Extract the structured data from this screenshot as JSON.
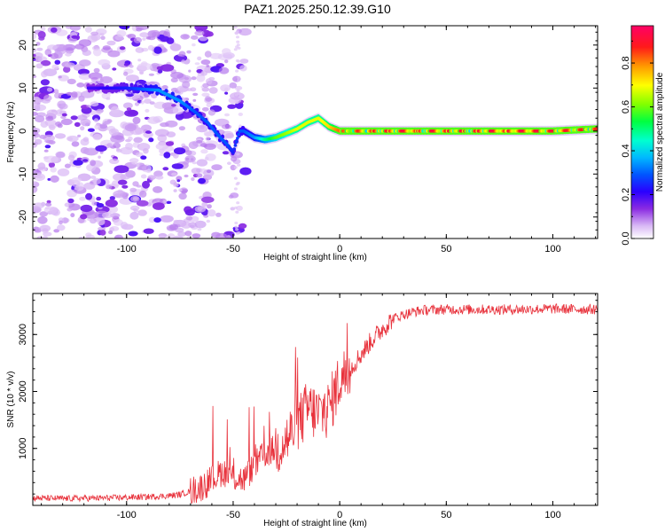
{
  "figure_title": "PAZ1.2025.250.12.39.G10",
  "chart_data": [
    {
      "type": "heatmap",
      "title": "PAZ1.2025.250.12.39.G10",
      "xlabel": "Height of straight line (km)",
      "ylabel": "Frequency (Hz)",
      "xlim": [
        -144,
        121
      ],
      "ylim": [
        -25,
        24.5
      ],
      "xticks": [
        -100,
        -50,
        0,
        50,
        100
      ],
      "yticks": [
        -20,
        -10,
        0,
        10,
        20
      ],
      "colorbar": {
        "label": "Normalized spectral amplitude",
        "range": [
          0,
          0.97
        ],
        "ticks": [
          0.0,
          0.2,
          0.4,
          0.6,
          0.8
        ],
        "tick_labels": [
          "0.0",
          "0.2",
          "0.4",
          "0.6",
          "0.8"
        ],
        "colormap": "rainbow"
      },
      "ridge": {
        "name": "dominant frequency ridge",
        "x": [
          -115,
          -100,
          -85,
          -75,
          -68,
          -62,
          -57,
          -53,
          -50,
          -47,
          -45,
          -40,
          -35,
          -30,
          -25,
          -20,
          -15,
          -10,
          -5,
          0,
          10,
          20,
          40,
          60,
          80,
          100,
          121
        ],
        "y": [
          10,
          10,
          9.5,
          7,
          4.5,
          2,
          -1,
          -3,
          -5,
          0,
          0,
          -1.5,
          -2,
          -1.5,
          -0.5,
          0.5,
          2,
          3,
          1,
          0,
          0,
          0,
          0,
          0,
          0,
          0,
          0.5
        ],
        "amplitude": [
          0.2,
          0.25,
          0.35,
          0.35,
          0.3,
          0.3,
          0.3,
          0.3,
          0.25,
          0.3,
          0.3,
          0.35,
          0.5,
          0.6,
          0.65,
          0.7,
          0.7,
          0.7,
          0.75,
          0.85,
          0.9,
          0.95,
          0.95,
          0.95,
          0.97,
          0.95,
          0.9
        ]
      }
    },
    {
      "type": "line",
      "xlabel": "Height of straight line (km)",
      "ylabel": "SNR (10 * v/v)",
      "xlim": [
        -144,
        121
      ],
      "ylim": [
        0,
        3720
      ],
      "xticks": [
        -100,
        -50,
        0,
        50,
        100
      ],
      "yticks": [
        1000,
        2000,
        3000
      ],
      "color": "#e8323c",
      "series": [
        {
          "name": "SNR",
          "x": [
            -144,
            -130,
            -110,
            -90,
            -80,
            -75,
            -70,
            -65,
            -60,
            -55,
            -50,
            -45,
            -40,
            -35,
            -30,
            -25,
            -20,
            -15,
            -10,
            -5,
            0,
            5,
            10,
            15,
            20,
            25,
            30,
            35,
            40,
            50,
            60,
            80,
            100,
            121
          ],
          "y": [
            130,
            120,
            130,
            150,
            170,
            190,
            250,
            320,
            450,
            600,
            500,
            450,
            700,
            900,
            1000,
            1150,
            1400,
            1700,
            1600,
            1700,
            2200,
            2400,
            2650,
            2900,
            3100,
            3280,
            3350,
            3400,
            3430,
            3440,
            3440,
            3440,
            3450,
            3440
          ]
        }
      ]
    }
  ]
}
